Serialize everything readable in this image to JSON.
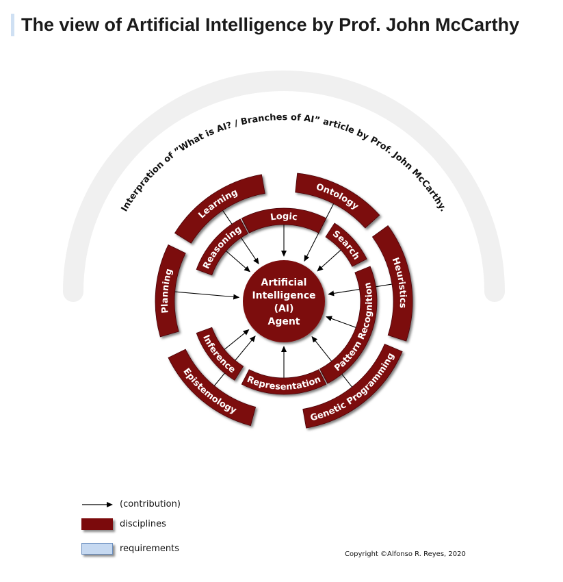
{
  "title": "The view of Artificial Intelligence by Prof. John McCarthy",
  "banner": "Interpration of ”What is AI? / Branches of AI” article by Prof. John McCarthy.",
  "center": {
    "lines": [
      "Artificial",
      "Intelligence",
      "(AI)",
      "Agent"
    ]
  },
  "segments": [
    {
      "label": "Logic",
      "ring": "inner"
    },
    {
      "label": "Search",
      "ring": "inner"
    },
    {
      "label": "Pattern Recognition",
      "ring": "inner"
    },
    {
      "label": "Representation",
      "ring": "inner"
    },
    {
      "label": "Inference",
      "ring": "inner"
    },
    {
      "label": "Reasoning",
      "ring": "inner"
    },
    {
      "label": "Ontology",
      "ring": "outer"
    },
    {
      "label": "Heuristics",
      "ring": "outer"
    },
    {
      "label": "Genetic Programming",
      "ring": "outer"
    },
    {
      "label": "Epistemology",
      "ring": "outer"
    },
    {
      "label": "Planning",
      "ring": "outer"
    },
    {
      "label": "Learning",
      "ring": "outer"
    }
  ],
  "legend": {
    "arrow_label": "(contribution)",
    "disciplines_label": "disciplines",
    "requirements_label": "requirements"
  },
  "colors": {
    "discipline_fill": "#7b0a0c",
    "requirement_fill": "#c6d9f1",
    "banner_arc": "#f0f0f0"
  },
  "copyright": "Copyright ©Alfonso R. Reyes, 2020"
}
